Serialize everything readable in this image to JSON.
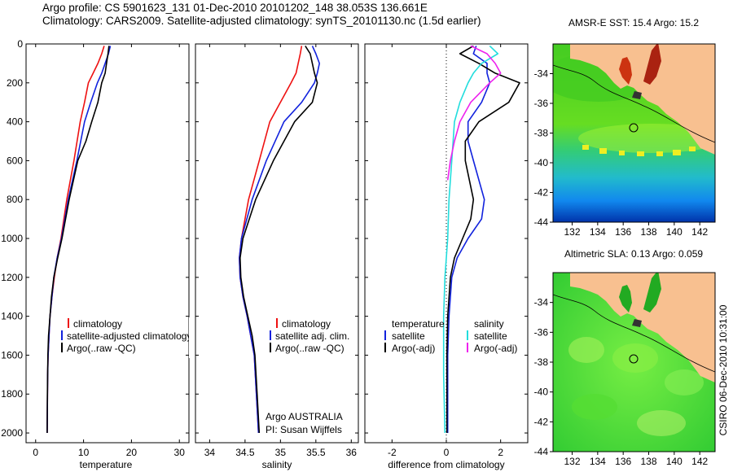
{
  "header": {
    "line1": "Argo profile: CS 5901623_131 01-Dec-2010 20101202_148 38.053S 136.661E",
    "line2": "Climatology: CARS2009. Satellite-adjusted climatology: synTS_20101130.nc (1.5d earlier)"
  },
  "colors": {
    "climatology": "#ee1111",
    "satellite": "#1122dd",
    "argo": "#000000",
    "sal_satellite": "#22dddd",
    "sal_argo": "#ee22ee",
    "land": "#f8c090"
  },
  "chart_data": [
    {
      "type": "line",
      "xlabel": "temperature",
      "ylabel": "",
      "xlim": [
        -2,
        32
      ],
      "ylim": [
        2050,
        0
      ],
      "xticks": [
        "0",
        "10",
        "20",
        "30"
      ],
      "yticks": [
        "0",
        "200",
        "400",
        "600",
        "800",
        "1000",
        "1200",
        "1400",
        "1600",
        "1800",
        "2000"
      ],
      "legend": [
        "climatology",
        "satellite-adjusted climatology",
        "Argo(..raw -QC)"
      ],
      "series": [
        {
          "name": "climatology",
          "color": "#ee1111",
          "x": [
            14.3,
            13.8,
            13.0,
            12.0,
            11.0,
            10.2,
            9.3,
            8.0,
            6.5,
            5.3,
            4.5,
            3.9,
            3.4,
            3.0,
            2.8,
            2.6,
            2.5,
            2.45,
            2.4
          ],
          "y": [
            10,
            50,
            100,
            150,
            200,
            300,
            400,
            600,
            800,
            1000,
            1100,
            1200,
            1300,
            1400,
            1500,
            1600,
            1700,
            1850,
            2000
          ]
        },
        {
          "name": "satellite-adjusted climatology",
          "color": "#1122dd",
          "x": [
            15.6,
            15.2,
            14.5,
            13.8,
            12.9,
            11.5,
            10.2,
            8.6,
            6.8,
            5.4,
            4.5,
            3.8,
            3.4,
            3.0,
            2.8,
            2.6,
            2.5,
            2.45,
            2.4
          ],
          "y": [
            10,
            50,
            100,
            150,
            200,
            300,
            400,
            600,
            800,
            1000,
            1100,
            1200,
            1300,
            1400,
            1500,
            1600,
            1700,
            1850,
            2000
          ]
        },
        {
          "name": "Argo(..raw -QC)",
          "color": "#000000",
          "x": [
            15.3,
            15.1,
            14.8,
            14.5,
            13.8,
            13.0,
            11.7,
            10.5,
            8.8,
            7.0,
            5.5,
            4.6,
            3.8,
            3.3,
            3.0,
            2.7,
            2.55,
            2.45,
            2.4
          ],
          "y": [
            10,
            50,
            100,
            150,
            200,
            300,
            400,
            500,
            600,
            800,
            1000,
            1100,
            1200,
            1300,
            1400,
            1500,
            1600,
            1800,
            2000
          ]
        }
      ]
    },
    {
      "type": "line",
      "xlabel": "salinity",
      "ylabel": "",
      "xlim": [
        33.8,
        36.1
      ],
      "ylim": [
        2050,
        0
      ],
      "xticks": [
        "34",
        "34.5",
        "35",
        "35.5",
        "36"
      ],
      "legend": [
        "climatology",
        "satellite adj. clim.",
        "Argo(..raw -QC)"
      ],
      "annotation": [
        "Argo AUSTRALIA",
        "PI: Susan Wijffels"
      ],
      "series": [
        {
          "name": "climatology",
          "color": "#ee1111",
          "x": [
            35.3,
            35.28,
            35.25,
            35.22,
            35.15,
            35.0,
            34.85,
            34.7,
            34.55,
            34.45,
            34.42,
            34.43,
            34.47,
            34.53,
            34.58,
            34.63,
            34.66,
            34.69
          ],
          "y": [
            10,
            50,
            100,
            150,
            200,
            300,
            400,
            600,
            800,
            1000,
            1100,
            1200,
            1300,
            1400,
            1500,
            1600,
            1800,
            2000
          ]
        },
        {
          "name": "satellite adj. clim.",
          "color": "#1122dd",
          "x": [
            35.45,
            35.5,
            35.55,
            35.52,
            35.48,
            35.3,
            35.05,
            34.8,
            34.6,
            34.45,
            34.42,
            34.43,
            34.47,
            34.53,
            34.58,
            34.63,
            34.66,
            34.69
          ],
          "y": [
            10,
            50,
            100,
            150,
            200,
            300,
            400,
            600,
            800,
            1000,
            1100,
            1200,
            1300,
            1400,
            1500,
            1600,
            1800,
            2000
          ]
        },
        {
          "name": "Argo(..raw -QC)",
          "color": "#000000",
          "x": [
            35.35,
            35.42,
            35.45,
            35.48,
            35.52,
            35.45,
            35.2,
            34.9,
            34.65,
            34.47,
            34.43,
            34.44,
            34.48,
            34.54,
            34.6,
            34.64,
            34.67,
            34.7
          ],
          "y": [
            10,
            50,
            100,
            150,
            200,
            300,
            400,
            600,
            800,
            1000,
            1100,
            1200,
            1300,
            1400,
            1500,
            1600,
            1800,
            2000
          ]
        }
      ]
    },
    {
      "type": "line",
      "xlabel": "difference from climatology",
      "ylabel": "",
      "xlim": [
        -3,
        3
      ],
      "ylim": [
        2050,
        0
      ],
      "xticks": [
        "-2",
        "0",
        "2"
      ],
      "legend_groups": {
        "temperature": [
          "satellite",
          "Argo(-adj)"
        ],
        "salinity": [
          "satellite",
          "Argo(-adj)"
        ]
      },
      "series": [
        {
          "name": "temperature satellite",
          "color": "#1122dd",
          "x": [
            1.1,
            1.0,
            1.5,
            1.5,
            1.6,
            1.3,
            0.8,
            0.8,
            1.0,
            1.4,
            1.3,
            0.8,
            0.4,
            0.2,
            0.1,
            0.05,
            0.05,
            0.05,
            0.05
          ],
          "y": [
            10,
            50,
            100,
            150,
            200,
            300,
            400,
            500,
            600,
            800,
            900,
            1000,
            1100,
            1200,
            1400,
            1600,
            1800,
            1900,
            2000
          ]
        },
        {
          "name": "temperature Argo(-adj)",
          "color": "#000000",
          "x": [
            1.0,
            0.5,
            1.2,
            1.8,
            2.7,
            2.3,
            1.2,
            0.7,
            0.7,
            1.0,
            0.9,
            0.6,
            0.3,
            0.15,
            0.05,
            0.02,
            0.02,
            0.02,
            0.02
          ],
          "y": [
            10,
            50,
            100,
            150,
            200,
            300,
            400,
            500,
            600,
            800,
            900,
            1000,
            1100,
            1200,
            1400,
            1600,
            1800,
            1900,
            2000
          ]
        },
        {
          "name": "salinity satellite",
          "color": "#22dddd",
          "x": [
            1.6,
            1.9,
            1.3,
            1.0,
            0.8,
            0.5,
            0.3,
            0.2,
            0.1,
            0.05,
            0.0,
            -0.05,
            -0.1,
            -0.1,
            -0.05
          ],
          "y": [
            10,
            50,
            100,
            150,
            200,
            300,
            400,
            600,
            800,
            1000,
            1100,
            1200,
            1400,
            1700,
            2000
          ]
        },
        {
          "name": "salinity Argo(-adj)",
          "color": "#ee22ee",
          "x": [
            0.9,
            1.5,
            1.8,
            2.0,
            1.6,
            0.9,
            0.5,
            0.3,
            0.15,
            0.05
          ],
          "y": [
            10,
            50,
            100,
            150,
            200,
            300,
            400,
            500,
            600,
            700
          ]
        }
      ]
    },
    {
      "type": "heatmap",
      "title": "AMSR-E SST: 15.4 Argo: 15.2",
      "xticks": [
        "132",
        "134",
        "136",
        "138",
        "140",
        "142"
      ],
      "yticks": [
        "-34",
        "-36",
        "-38",
        "-40",
        "-42",
        "-44"
      ],
      "xlim": [
        130.5,
        143.2
      ],
      "ylim": [
        -44,
        -32
      ],
      "marker": {
        "lon": 136.661,
        "lat": -38.053
      }
    },
    {
      "type": "heatmap",
      "title": "Altimetric SLA: 0.13 Argo: 0.059",
      "xticks": [
        "132",
        "134",
        "136",
        "138",
        "140",
        "142"
      ],
      "yticks": [
        "-34",
        "-36",
        "-38",
        "-40",
        "-42",
        "-44"
      ],
      "xlim": [
        130.5,
        143.2
      ],
      "ylim": [
        -44,
        -32
      ],
      "marker": {
        "lon": 136.661,
        "lat": -38.053
      }
    }
  ],
  "side_label": "CSIRO 06-Dec-2010 10:31:00"
}
